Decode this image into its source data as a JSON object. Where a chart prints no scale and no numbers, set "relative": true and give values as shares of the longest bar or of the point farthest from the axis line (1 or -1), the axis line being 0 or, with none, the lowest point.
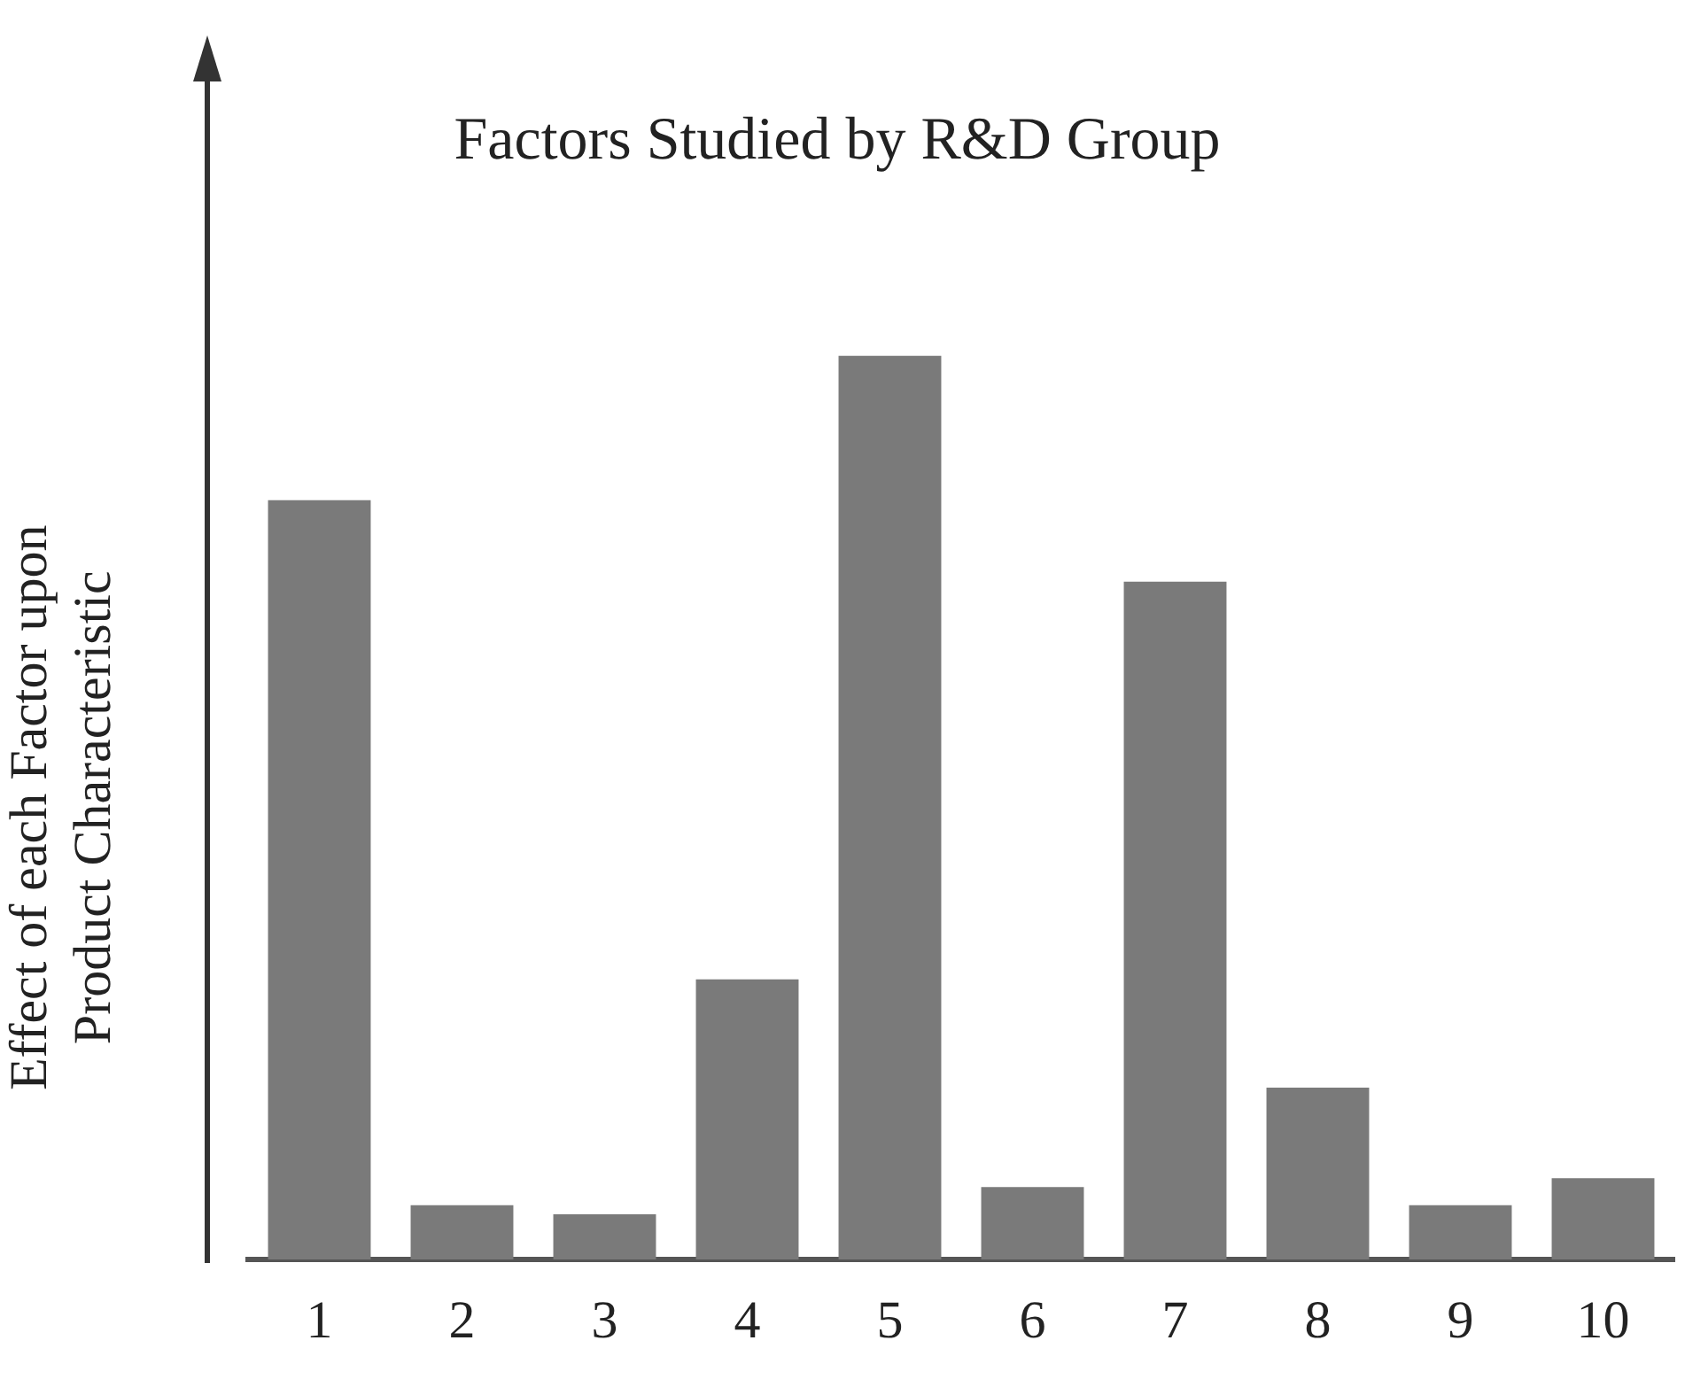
{
  "chart_data": {
    "type": "bar",
    "title": "Factors Studied by R&D Group",
    "ylabel": "Effect of each Factor upon\nProduct Characteristic",
    "relative": true,
    "categories": [
      "1",
      "2",
      "3",
      "4",
      "5",
      "6",
      "7",
      "8",
      "9",
      "10"
    ],
    "values": [
      0.84,
      0.06,
      0.05,
      0.31,
      1,
      0.08,
      0.75,
      0.19,
      0.06,
      0.09
    ],
    "color": "#7a7a7a",
    "grid": false,
    "legend": false
  }
}
